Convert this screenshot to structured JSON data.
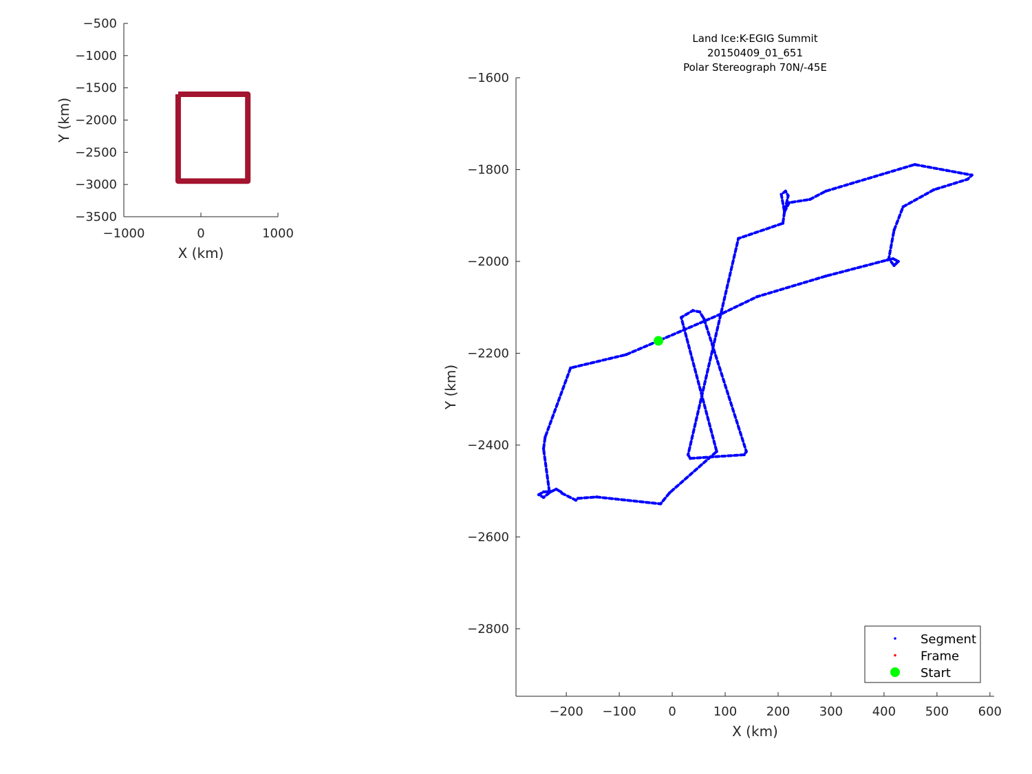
{
  "chart_data": [
    {
      "type": "line",
      "xlabel": "X (km)",
      "ylabel": "Y (km)",
      "xlim": [
        -1000,
        1000
      ],
      "ylim": [
        -3500,
        -500
      ],
      "xticks": [
        -1000,
        0,
        1000
      ],
      "yticks": [
        -500,
        -1000,
        -1500,
        -2000,
        -2500,
        -3000,
        -3500
      ],
      "grid": false,
      "series": [
        {
          "color": "#a2142f",
          "x": [
            -295,
            609,
            609,
            -295,
            -295
          ],
          "y": [
            -1600,
            -1600,
            -2947,
            -2947,
            -1600
          ]
        }
      ]
    },
    {
      "type": "scatter",
      "title": [
        "Land Ice:K-EGIG Summit",
        "20150409_01_651",
        "Polar Stereograph 70N/-45E"
      ],
      "xlabel": "X (km)",
      "ylabel": "Y (km)",
      "xlim": [
        -295,
        608
      ],
      "ylim": [
        -2947,
        -1600
      ],
      "xticks": [
        -200,
        -100,
        0,
        100,
        200,
        300,
        400,
        500,
        600
      ],
      "yticks": [
        -1600,
        -1800,
        -2000,
        -2200,
        -2400,
        -2600,
        -2800
      ],
      "grid": false,
      "legend_position": "bottom-right",
      "series": [
        {
          "name": "Segment",
          "color": "#0000ff",
          "x": [
            -26,
            -87,
            -192,
            -240,
            -243,
            -232,
            -243,
            -252,
            -243,
            -230,
            -219,
            -210,
            -208,
            -182,
            -178,
            -143,
            -22,
            -5,
            69,
            84,
            17,
            39,
            52,
            60,
            140,
            136,
            34,
            30,
            125,
            209,
            212,
            206,
            214,
            219,
            212,
            221,
            260,
            290,
            458,
            519,
            566,
            558,
            494,
            436,
            419,
            409,
            419,
            427,
            417,
            406,
            290,
            160,
            95,
            -26
          ],
          "y": [
            -2173,
            -2203,
            -2232,
            -2383,
            -2408,
            -2501,
            -2502,
            -2508,
            -2514,
            -2502,
            -2496,
            -2502,
            -2505,
            -2520,
            -2516,
            -2513,
            -2528,
            -2504,
            -2429,
            -2414,
            -2122,
            -2107,
            -2110,
            -2125,
            -2414,
            -2421,
            -2429,
            -2421,
            -1950,
            -1917,
            -1892,
            -1854,
            -1847,
            -1857,
            -1892,
            -1872,
            -1865,
            -1847,
            -1789,
            -1802,
            -1812,
            -1821,
            -1844,
            -1881,
            -1932,
            -1994,
            -2009,
            -2000,
            -1994,
            -1997,
            -2032,
            -2077,
            -2113,
            -2173
          ]
        },
        {
          "name": "Frame",
          "color": "#ff0000",
          "x": [],
          "y": []
        },
        {
          "name": "Start",
          "color": "#00ff00",
          "x": [
            -26
          ],
          "y": [
            -2173
          ]
        }
      ]
    }
  ]
}
